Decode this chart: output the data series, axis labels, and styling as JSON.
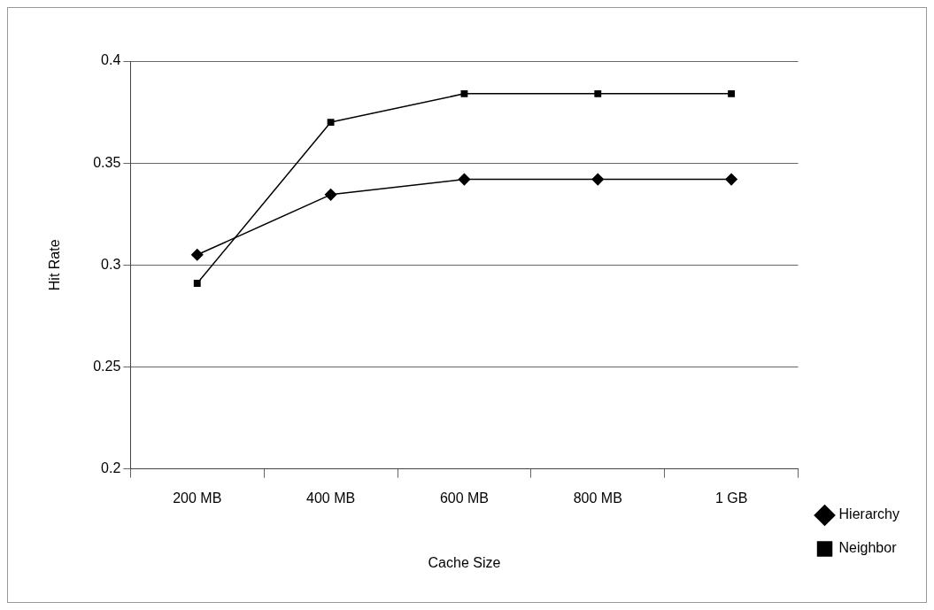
{
  "chart_data": {
    "type": "line",
    "xlabel": "Cache Size",
    "ylabel": "Hit Rate",
    "categories": [
      "200 MB",
      "400 MB",
      "600 MB",
      "800 MB",
      "1 GB"
    ],
    "ylim": [
      0.2,
      0.4
    ],
    "yticks": [
      0.2,
      0.25,
      0.3,
      0.35,
      0.4
    ],
    "grid": "y",
    "legend": "bottom right",
    "series": [
      {
        "name": "Hierarchy",
        "color": "#000000",
        "marker": "diamond",
        "values": [
          0.305,
          0.3345,
          0.342,
          0.342,
          0.342
        ]
      },
      {
        "name": "Neighbor",
        "color": "#000000",
        "marker": "square",
        "values": [
          0.291,
          0.37,
          0.384,
          0.384,
          0.384
        ]
      }
    ]
  }
}
